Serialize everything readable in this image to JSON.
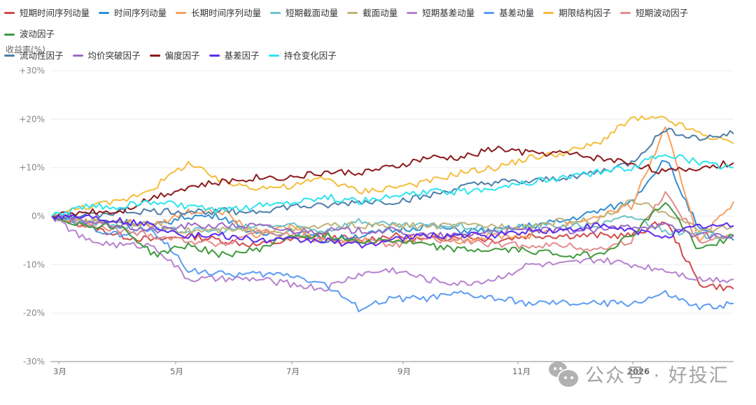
{
  "legend": [
    {
      "label": "短期时间序列动量",
      "color": "#d14a4a"
    },
    {
      "label": "时间序列动量",
      "color": "#2f8fd6"
    },
    {
      "label": "长期时间序列动量",
      "color": "#f7a05d"
    },
    {
      "label": "短期截面动量",
      "color": "#6cc3c8"
    },
    {
      "label": "截面动量",
      "color": "#bfb27a"
    },
    {
      "label": "短期基差动量",
      "color": "#b582cf"
    },
    {
      "label": "基差动量",
      "color": "#5b9cf2"
    },
    {
      "label": "期限结构因子",
      "color": "#f5bd3c"
    },
    {
      "label": "短期波动因子",
      "color": "#e38c8c"
    },
    {
      "label": "波动因子",
      "color": "#3e9a3c"
    },
    {
      "label": "流动性因子",
      "color": "#4d7ea8"
    },
    {
      "label": "均价突破因子",
      "color": "#9b6bc4"
    },
    {
      "label": "偏度因子",
      "color": "#8b1a1a"
    },
    {
      "label": "基差因子",
      "color": "#5a2cf0"
    },
    {
      "label": "持仓变化因子",
      "color": "#2fe3ef"
    }
  ],
  "axis": {
    "y_title": "收益率(%)",
    "y_ticks": [
      "+30%",
      "+20%",
      "+10%",
      "0%",
      "-10%",
      "-20%",
      "-30%"
    ],
    "x_ticks": [
      "3月",
      "5月",
      "7月",
      "9月",
      "11月",
      "2026"
    ]
  },
  "watermark": {
    "text": "公众号 · 好投汇",
    "icon": "wechat-icon"
  },
  "chart_data": {
    "type": "line",
    "title": "",
    "xlabel": "",
    "ylabel": "收益率(%)",
    "ylim": [
      -30,
      30
    ],
    "x_ticks": [
      "3月",
      "5月",
      "7月",
      "9月",
      "11月",
      "2026"
    ],
    "grid": true,
    "legend_position": "top",
    "x": [
      0,
      5,
      10,
      15,
      20,
      25,
      30,
      35,
      40,
      45,
      50,
      55,
      60,
      65,
      70,
      75,
      80,
      85,
      90,
      95,
      100
    ],
    "series": [
      {
        "name": "短期时间序列动量",
        "values": [
          0,
          -2,
          -4,
          -5,
          -4,
          -5,
          -6,
          -5,
          -4,
          -5,
          -4,
          -5,
          -4,
          -5,
          -4,
          -4,
          -4,
          -4,
          -1,
          -14,
          -15
        ]
      },
      {
        "name": "时间序列动量",
        "values": [
          0,
          -1,
          -1,
          -2,
          0,
          0,
          -4,
          -3,
          -5,
          -4,
          -3,
          -2,
          -3,
          -3,
          -2,
          -1,
          1,
          3,
          12,
          -3,
          -5
        ]
      },
      {
        "name": "长期时间序列动量",
        "values": [
          0,
          -1,
          -1,
          -2,
          1,
          1,
          -4,
          -2,
          -5,
          -5,
          -5,
          -4,
          -5,
          -4,
          -4,
          -2,
          0,
          2,
          18,
          -5,
          3
        ]
      },
      {
        "name": "短期截面动量",
        "values": [
          0,
          -1,
          -2,
          -3,
          -3,
          -3,
          -2,
          -2,
          -3,
          -1,
          -2,
          -2,
          -2,
          -3,
          -2,
          -2,
          -2,
          0,
          -3,
          -4,
          -4
        ]
      },
      {
        "name": "截面动量",
        "values": [
          0,
          -1,
          -1,
          -2,
          -3,
          -3,
          -3,
          -3,
          -2,
          -2,
          -2,
          -2,
          -2,
          -2,
          -2,
          -1,
          -1,
          3,
          1,
          -3,
          -2
        ]
      },
      {
        "name": "短期基差动量",
        "values": [
          0,
          -5,
          -6,
          -6,
          -13,
          -13,
          -13,
          -14,
          -15,
          -12,
          -11,
          -13,
          -14,
          -13,
          -10,
          -10,
          -9,
          -10,
          -11,
          -13,
          -13
        ]
      },
      {
        "name": "基差动量",
        "values": [
          0,
          -2,
          -4,
          -3,
          -11,
          -12,
          -12,
          -12,
          -14,
          -19,
          -17,
          -17,
          -16,
          -17,
          -18,
          -18,
          -18,
          -18,
          -16,
          -19,
          -18
        ]
      },
      {
        "name": "期限结构因子",
        "values": [
          0,
          2,
          3,
          6,
          11,
          7,
          6,
          6,
          8,
          5,
          6,
          7,
          9,
          10,
          12,
          13,
          15,
          20,
          20,
          17,
          15
        ]
      },
      {
        "name": "短期波动因子",
        "values": [
          0,
          -2,
          -3,
          -4,
          -5,
          -6,
          -3,
          -4,
          -5,
          -5,
          -6,
          -5,
          -5,
          -6,
          -6,
          -6,
          -7,
          -5,
          5,
          -5,
          -4
        ]
      },
      {
        "name": "波动因子",
        "values": [
          0,
          -2,
          -2,
          -8,
          -6,
          -8,
          -7,
          -4,
          -4,
          -5,
          -5,
          -6,
          -7,
          -7,
          -7,
          -8,
          -8,
          -4,
          3,
          -7,
          -4
        ]
      },
      {
        "name": "流动性因子",
        "values": [
          0,
          0,
          1,
          1,
          1,
          1,
          1,
          2,
          2,
          3,
          3,
          4,
          6,
          7,
          7,
          8,
          9,
          11,
          18,
          16,
          17
        ]
      },
      {
        "name": "均价突破因子",
        "values": [
          0,
          -1,
          -2,
          -3,
          -2,
          -2,
          -2,
          -3,
          -3,
          -3,
          -3,
          -4,
          -4,
          -3,
          -3,
          -3,
          -3,
          -2,
          -2,
          -4,
          -4
        ]
      },
      {
        "name": "偏度因子",
        "values": [
          0,
          1,
          1,
          4,
          6,
          7,
          8,
          8,
          9,
          9,
          10,
          12,
          12,
          14,
          13,
          13,
          12,
          11,
          9,
          10,
          11
        ]
      },
      {
        "name": "基差因子",
        "values": [
          0,
          0,
          -1,
          -2,
          -4,
          -4,
          -5,
          -5,
          -5,
          -6,
          -5,
          -4,
          -4,
          -4,
          -3,
          -3,
          -2,
          -3,
          -4,
          -2,
          -2
        ]
      },
      {
        "name": "持仓变化因子",
        "values": [
          0,
          2,
          2,
          3,
          2,
          1,
          2,
          3,
          4,
          3,
          4,
          5,
          5,
          6,
          7,
          8,
          9,
          10,
          13,
          11,
          10
        ]
      }
    ]
  }
}
